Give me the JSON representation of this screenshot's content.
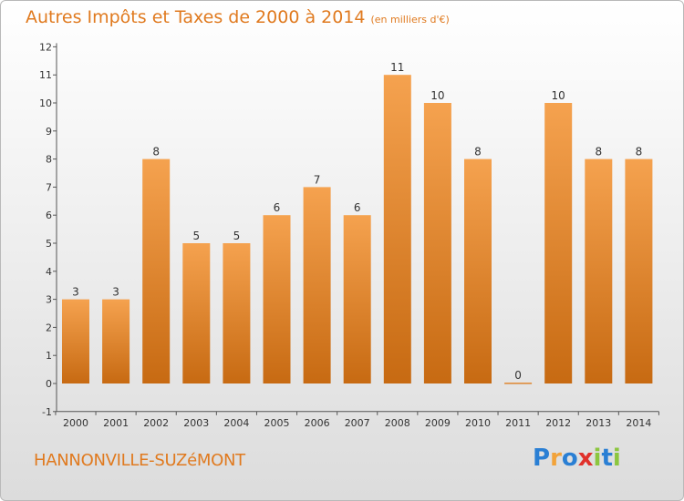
{
  "header": {
    "title": "Autres Impôts et Taxes de 2000 à 2014",
    "unit": "(en milliers d'€)"
  },
  "footer": {
    "commune": "HANNONVILLE-SUZéMONT",
    "brand_letters": [
      "P",
      "r",
      "o",
      "x",
      "i",
      "t",
      "i"
    ],
    "brand_colors": [
      "#2a7fd4",
      "#f2a33a",
      "#2a7fd4",
      "#e0312b",
      "#8cc63f",
      "#2a7fd4",
      "#8cc63f"
    ]
  },
  "colors": {
    "bar_top": "#f5a24f",
    "bar_bottom": "#c76a12",
    "text": "#e07a1f",
    "axis": "#555555"
  },
  "chart_data": {
    "type": "bar",
    "title": "Autres Impôts et Taxes de 2000 à 2014",
    "subtitle": "(en milliers d'€)",
    "categories": [
      "2000",
      "2001",
      "2002",
      "2003",
      "2004",
      "2005",
      "2006",
      "2007",
      "2008",
      "2009",
      "2010",
      "2011",
      "2012",
      "2013",
      "2014"
    ],
    "values": [
      3,
      3,
      8,
      5,
      5,
      6,
      7,
      6,
      11,
      10,
      8,
      0,
      10,
      8,
      8
    ],
    "ylim": [
      -1,
      12
    ],
    "yticks": [
      -1,
      0,
      1,
      2,
      3,
      4,
      5,
      6,
      7,
      8,
      9,
      10,
      11,
      12
    ],
    "grid": false,
    "legend": "none"
  }
}
